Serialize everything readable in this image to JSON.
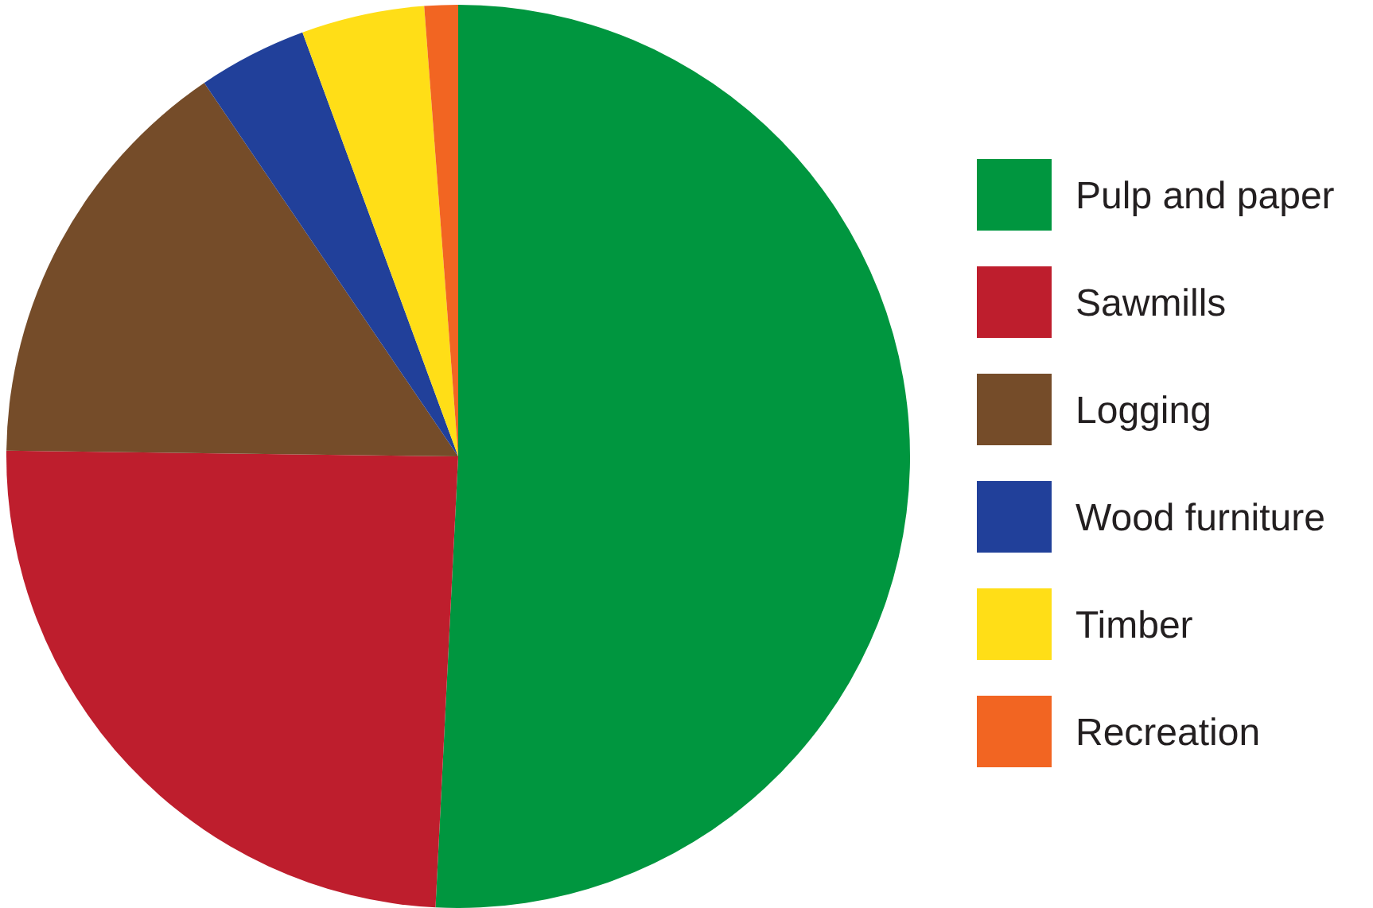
{
  "chart_data": {
    "type": "pie",
    "categories": [
      "Pulp and paper",
      "Sawmills",
      "Logging",
      "Wood furniture",
      "Timber",
      "Recreation"
    ],
    "values": [
      50.8,
      24.4,
      15.3,
      3.9,
      4.4,
      1.2
    ],
    "colors": [
      "#00963f",
      "#be1e2d",
      "#754c29",
      "#21409a",
      "#ffde17",
      "#f26522"
    ],
    "legend": "right"
  }
}
